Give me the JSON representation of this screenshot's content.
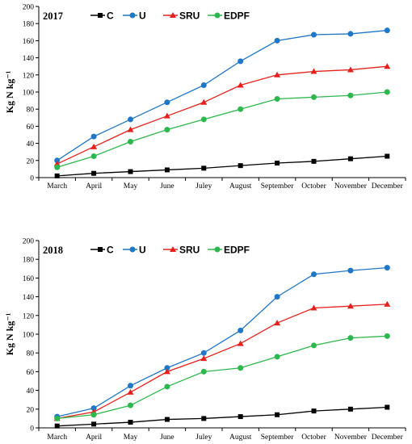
{
  "chart_data": [
    {
      "type": "line",
      "title": "2017",
      "ylabel": "Kg N kg⁻¹",
      "categories": [
        "March",
        "April",
        "May",
        "June",
        "Juley",
        "August",
        "September",
        "October",
        "November",
        "December"
      ],
      "ylim": [
        0,
        200
      ],
      "yticks": [
        0,
        20,
        40,
        60,
        80,
        100,
        120,
        140,
        160,
        180,
        200
      ],
      "grid": false,
      "legend_position": "top",
      "series": [
        {
          "name": "C",
          "color": "#000000",
          "marker": "square",
          "values": [
            2,
            5,
            7,
            9,
            11,
            14,
            17,
            19,
            22,
            25
          ]
        },
        {
          "name": "U",
          "color": "#1f77c8",
          "marker": "circle",
          "values": [
            20,
            48,
            68,
            88,
            108,
            136,
            160,
            167,
            168,
            172
          ]
        },
        {
          "name": "SRU",
          "color": "#e8201c",
          "marker": "triangle",
          "values": [
            16,
            36,
            56,
            72,
            88,
            108,
            120,
            124,
            126,
            130
          ]
        },
        {
          "name": "EDPF",
          "color": "#2db84d",
          "marker": "circle",
          "values": [
            12,
            25,
            42,
            56,
            68,
            80,
            92,
            94,
            96,
            100
          ]
        }
      ]
    },
    {
      "type": "line",
      "title": "2018",
      "ylabel": "Kg N kg⁻¹",
      "categories": [
        "March",
        "April",
        "May",
        "June",
        "Juley",
        "August",
        "September",
        "October",
        "November",
        "December"
      ],
      "ylim": [
        0,
        200
      ],
      "yticks": [
        0,
        20,
        40,
        60,
        80,
        100,
        120,
        140,
        160,
        180,
        200
      ],
      "grid": false,
      "legend_position": "top",
      "series": [
        {
          "name": "C",
          "color": "#000000",
          "marker": "square",
          "values": [
            2,
            4,
            6,
            9,
            10,
            12,
            14,
            18,
            20,
            22
          ]
        },
        {
          "name": "U",
          "color": "#1f77c8",
          "marker": "circle",
          "values": [
            12,
            21,
            45,
            64,
            80,
            104,
            140,
            164,
            168,
            171
          ]
        },
        {
          "name": "SRU",
          "color": "#e8201c",
          "marker": "triangle",
          "values": [
            10,
            17,
            38,
            60,
            74,
            90,
            112,
            128,
            130,
            132
          ]
        },
        {
          "name": "EDPF",
          "color": "#2db84d",
          "marker": "circle",
          "values": [
            10,
            14,
            24,
            44,
            60,
            64,
            76,
            88,
            96,
            98
          ]
        }
      ]
    }
  ]
}
